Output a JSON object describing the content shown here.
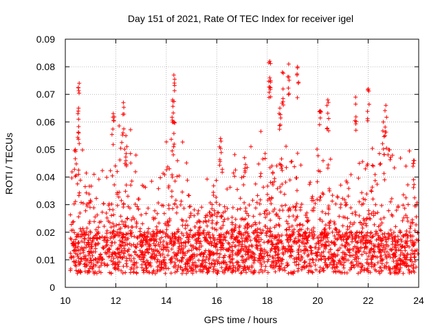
{
  "chart_data": {
    "type": "scatter",
    "title": "Day 151 of 2021, Rate Of TEC Index for receiver igel",
    "xlabel": "GPS time / hours",
    "ylabel": "ROTI / TECUs",
    "xlim": [
      10,
      24
    ],
    "ylim": [
      0,
      0.09
    ],
    "xticks": [
      "10",
      "12",
      "14",
      "16",
      "18",
      "20",
      "22",
      "24"
    ],
    "yticks": [
      "0",
      "0.01",
      "0.02",
      "0.03",
      "0.04",
      "0.05",
      "0.06",
      "0.07",
      "0.08",
      "0.09"
    ],
    "grid": true,
    "marker": "plus",
    "color": "#ff0000",
    "series": [
      {
        "name": "ROTI",
        "description": "Dense scatter of ROTI values; baseline 0.005-0.02 TECUs throughout, with spikes listed below",
        "baseline_range": [
          0.005,
          0.02
        ],
        "peaks": [
          {
            "x": 10.55,
            "y": 0.074
          },
          {
            "x": 10.5,
            "y": 0.063
          },
          {
            "x": 10.4,
            "y": 0.05
          },
          {
            "x": 11.9,
            "y": 0.063
          },
          {
            "x": 12.3,
            "y": 0.067
          },
          {
            "x": 12.4,
            "y": 0.055
          },
          {
            "x": 14.3,
            "y": 0.077
          },
          {
            "x": 14.25,
            "y": 0.068
          },
          {
            "x": 14.3,
            "y": 0.06
          },
          {
            "x": 16.15,
            "y": 0.054
          },
          {
            "x": 17.1,
            "y": 0.047
          },
          {
            "x": 18.1,
            "y": 0.082
          },
          {
            "x": 18.1,
            "y": 0.076
          },
          {
            "x": 18.6,
            "y": 0.078
          },
          {
            "x": 18.85,
            "y": 0.081
          },
          {
            "x": 19.2,
            "y": 0.08
          },
          {
            "x": 18.5,
            "y": 0.065
          },
          {
            "x": 20.1,
            "y": 0.064
          },
          {
            "x": 20.4,
            "y": 0.068
          },
          {
            "x": 21.5,
            "y": 0.069
          },
          {
            "x": 22.0,
            "y": 0.072
          },
          {
            "x": 22.7,
            "y": 0.066
          },
          {
            "x": 22.6,
            "y": 0.06
          },
          {
            "x": 23.8,
            "y": 0.046
          }
        ]
      }
    ]
  }
}
